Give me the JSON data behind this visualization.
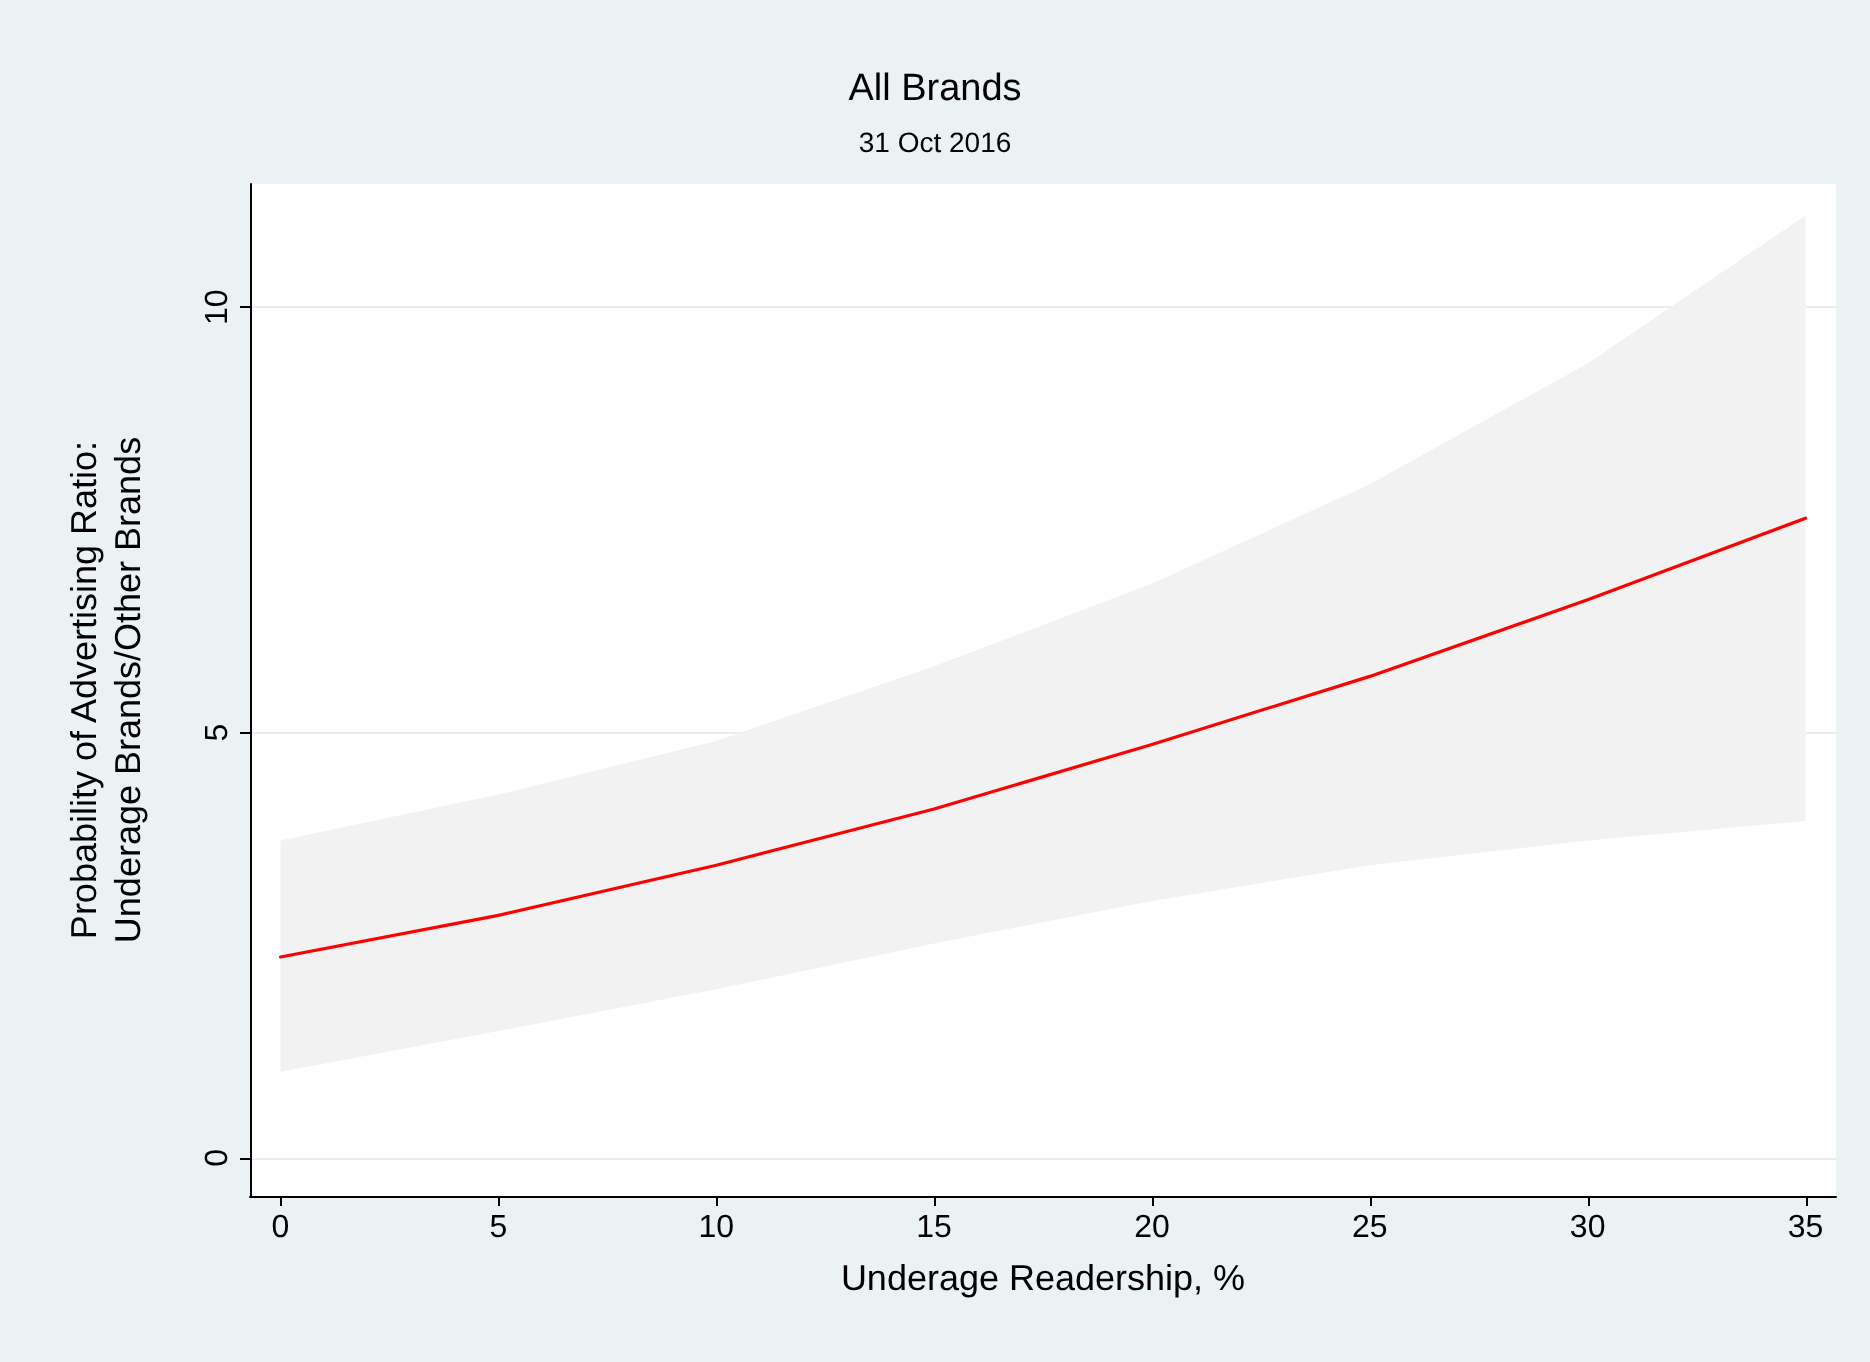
{
  "chart_data": {
    "type": "line",
    "title": "All Brands",
    "subtitle": "31 Oct 2016",
    "xlabel": "Underage Readership, %",
    "ylabel": "Probability of Advertising Ratio:\nUnderage Brands/Other Brands",
    "x": [
      0,
      5,
      10,
      15,
      20,
      25,
      30,
      35
    ],
    "series": [
      {
        "color": "#ff0000",
        "values": [
          2.36,
          2.85,
          3.44,
          4.1,
          4.86,
          5.66,
          6.56,
          7.52
        ],
        "lower": [
          1.01,
          1.49,
          1.98,
          2.52,
          3.02,
          3.44,
          3.73,
          3.96
        ],
        "upper": [
          3.73,
          4.27,
          4.9,
          5.78,
          6.75,
          7.92,
          9.34,
          11.08
        ]
      }
    ],
    "xlim": [
      -0.7,
      35.7
    ],
    "xticks": [
      0,
      5,
      10,
      15,
      20,
      25,
      30,
      35
    ],
    "ylim": [
      -0.45,
      11.45
    ],
    "yticks": [
      0,
      5,
      10
    ],
    "grid": "y",
    "marker": "none",
    "line_style": "solid"
  }
}
